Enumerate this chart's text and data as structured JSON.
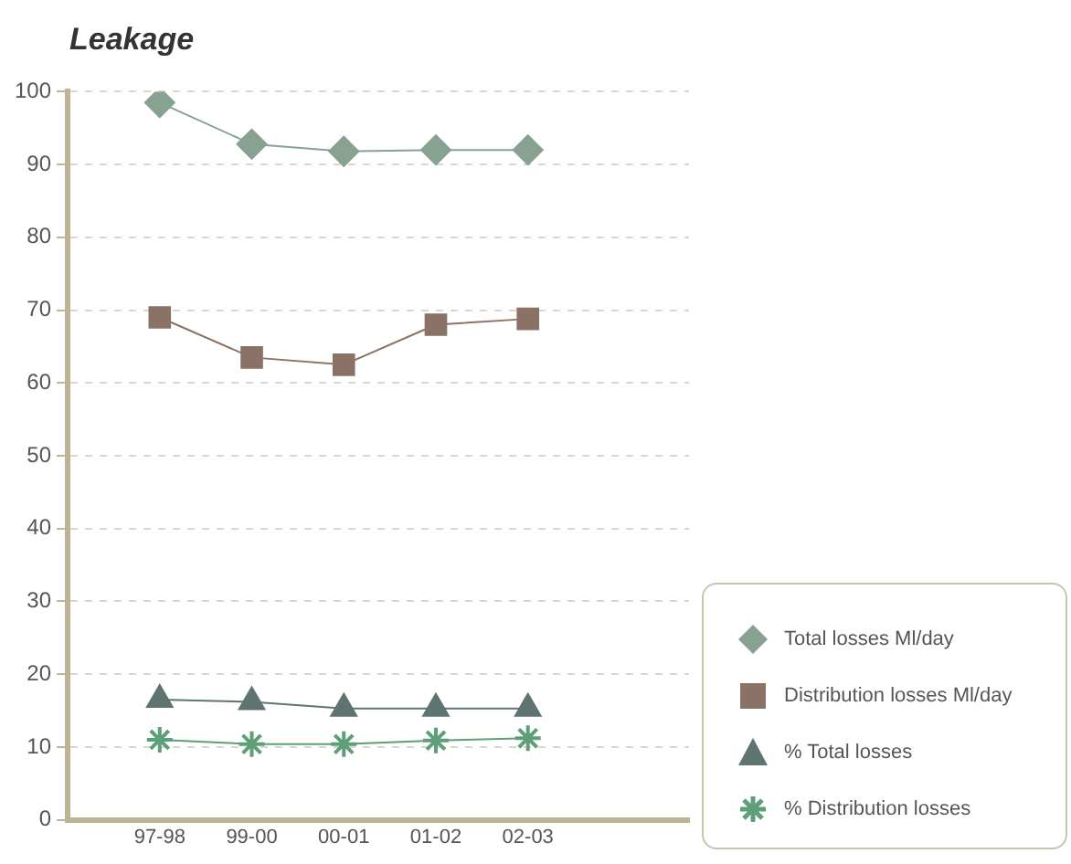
{
  "chart_data": {
    "type": "line",
    "title": "Leakage",
    "categories": [
      "97-98",
      "99-00",
      "00-01",
      "01-02",
      "02-03"
    ],
    "series": [
      {
        "name": "Total losses Ml/day",
        "color": "#87a291",
        "marker": "diamond",
        "values": [
          98.5,
          92.8,
          91.8,
          92,
          92
        ]
      },
      {
        "name": "Distribution losses Ml/day",
        "color": "#8a7266",
        "marker": "square",
        "values": [
          69,
          63.5,
          62.5,
          68,
          68.8
        ]
      },
      {
        "name": "% Total losses",
        "color": "#5f7371",
        "marker": "triangle",
        "values": [
          16.5,
          16.2,
          15.3,
          15.3,
          15.3
        ]
      },
      {
        "name": "% Distribution losses",
        "color": "#5f9f78",
        "marker": "cross",
        "values": [
          11,
          10.4,
          10.4,
          10.9,
          11.2
        ]
      }
    ],
    "ylim": [
      0,
      100
    ],
    "yticks": [
      0,
      10,
      20,
      30,
      40,
      50,
      60,
      70,
      80,
      90,
      100
    ],
    "grid": "y",
    "legend": "bottom right"
  }
}
